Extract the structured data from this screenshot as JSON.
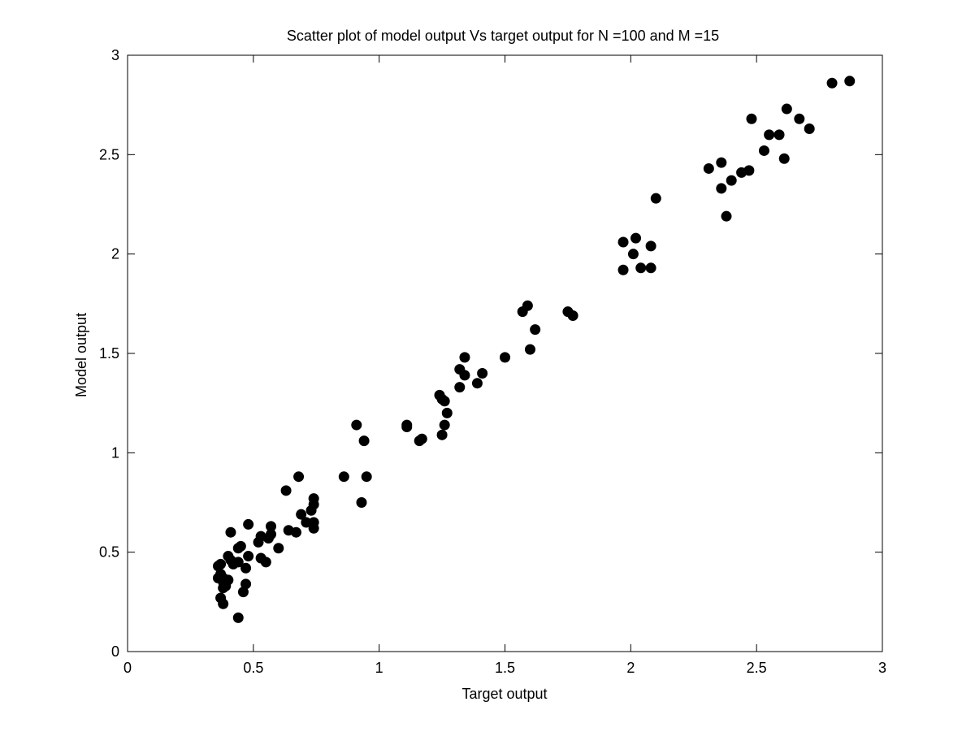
{
  "chart_data": {
    "type": "scatter",
    "title": "Scatter plot of model output Vs target output for N =100 and M =15",
    "xlabel": "Target output",
    "ylabel": "Model output",
    "xlim": [
      0,
      3
    ],
    "ylim": [
      0,
      3
    ],
    "xticks": [
      "0",
      "0.5",
      "1",
      "1.5",
      "2",
      "2.5",
      "3"
    ],
    "yticks": [
      "0",
      "0.5",
      "1",
      "1.5",
      "2",
      "2.5",
      "3"
    ],
    "grid": false,
    "legend": "none",
    "marker_color": "#000000",
    "points": [
      [
        0.36,
        0.43
      ],
      [
        0.37,
        0.44
      ],
      [
        0.36,
        0.37
      ],
      [
        0.37,
        0.39
      ],
      [
        0.38,
        0.37
      ],
      [
        0.38,
        0.35
      ],
      [
        0.37,
        0.27
      ],
      [
        0.38,
        0.24
      ],
      [
        0.38,
        0.32
      ],
      [
        0.39,
        0.33
      ],
      [
        0.4,
        0.36
      ],
      [
        0.4,
        0.48
      ],
      [
        0.41,
        0.46
      ],
      [
        0.41,
        0.6
      ],
      [
        0.42,
        0.44
      ],
      [
        0.44,
        0.45
      ],
      [
        0.44,
        0.52
      ],
      [
        0.45,
        0.53
      ],
      [
        0.44,
        0.17
      ],
      [
        0.46,
        0.3
      ],
      [
        0.47,
        0.34
      ],
      [
        0.47,
        0.42
      ],
      [
        0.48,
        0.48
      ],
      [
        0.48,
        0.64
      ],
      [
        0.52,
        0.55
      ],
      [
        0.53,
        0.58
      ],
      [
        0.53,
        0.47
      ],
      [
        0.55,
        0.45
      ],
      [
        0.56,
        0.57
      ],
      [
        0.57,
        0.63
      ],
      [
        0.57,
        0.59
      ],
      [
        0.6,
        0.52
      ],
      [
        0.63,
        0.81
      ],
      [
        0.64,
        0.61
      ],
      [
        0.67,
        0.6
      ],
      [
        0.68,
        0.88
      ],
      [
        0.69,
        0.69
      ],
      [
        0.71,
        0.65
      ],
      [
        0.73,
        0.71
      ],
      [
        0.74,
        0.77
      ],
      [
        0.74,
        0.74
      ],
      [
        0.74,
        0.65
      ],
      [
        0.74,
        0.62
      ],
      [
        0.86,
        0.88
      ],
      [
        0.91,
        1.14
      ],
      [
        0.93,
        0.75
      ],
      [
        0.94,
        1.06
      ],
      [
        0.95,
        0.88
      ],
      [
        1.11,
        1.14
      ],
      [
        1.11,
        1.13
      ],
      [
        1.16,
        1.06
      ],
      [
        1.17,
        1.07
      ],
      [
        1.24,
        1.29
      ],
      [
        1.25,
        1.27
      ],
      [
        1.25,
        1.09
      ],
      [
        1.26,
        1.14
      ],
      [
        1.26,
        1.26
      ],
      [
        1.27,
        1.2
      ],
      [
        1.32,
        1.42
      ],
      [
        1.32,
        1.33
      ],
      [
        1.34,
        1.48
      ],
      [
        1.34,
        1.39
      ],
      [
        1.39,
        1.35
      ],
      [
        1.41,
        1.4
      ],
      [
        1.5,
        1.48
      ],
      [
        1.57,
        1.71
      ],
      [
        1.59,
        1.74
      ],
      [
        1.6,
        1.52
      ],
      [
        1.62,
        1.62
      ],
      [
        1.75,
        1.71
      ],
      [
        1.77,
        1.69
      ],
      [
        1.97,
        2.06
      ],
      [
        1.97,
        1.92
      ],
      [
        2.01,
        2.0
      ],
      [
        2.02,
        2.08
      ],
      [
        2.04,
        1.93
      ],
      [
        2.08,
        2.04
      ],
      [
        2.08,
        1.93
      ],
      [
        2.1,
        2.28
      ],
      [
        2.31,
        2.43
      ],
      [
        2.36,
        2.46
      ],
      [
        2.36,
        2.33
      ],
      [
        2.38,
        2.19
      ],
      [
        2.4,
        2.37
      ],
      [
        2.44,
        2.41
      ],
      [
        2.47,
        2.42
      ],
      [
        2.48,
        2.68
      ],
      [
        2.53,
        2.52
      ],
      [
        2.55,
        2.6
      ],
      [
        2.59,
        2.6
      ],
      [
        2.61,
        2.48
      ],
      [
        2.62,
        2.73
      ],
      [
        2.67,
        2.68
      ],
      [
        2.71,
        2.63
      ],
      [
        2.8,
        2.86
      ],
      [
        2.87,
        2.87
      ]
    ]
  }
}
